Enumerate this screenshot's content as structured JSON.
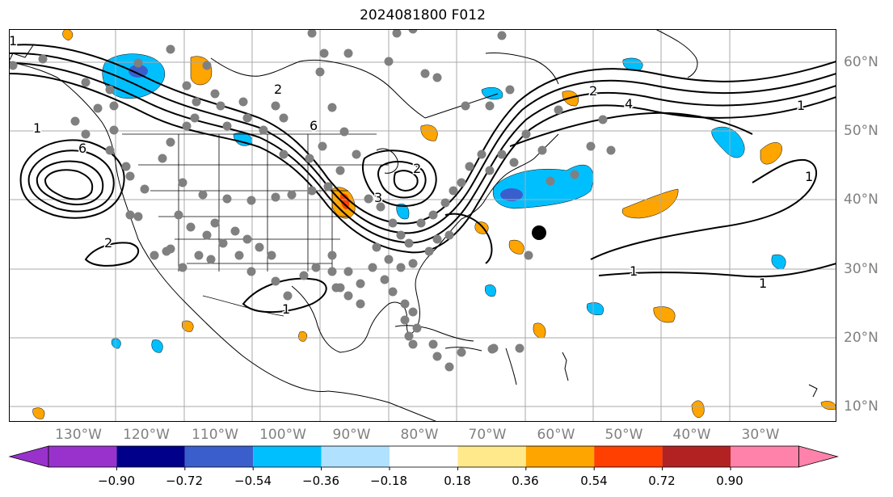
{
  "title": "2024081800 F012",
  "lat_labels": [
    "60°N",
    "50°N",
    "40°N",
    "30°N",
    "20°N",
    "10°N"
  ],
  "lon_labels": [
    "130°W",
    "120°W",
    "110°W",
    "100°W",
    "90°W",
    "80°W",
    "70°W",
    "60°W",
    "50°W",
    "40°W",
    "30°W"
  ],
  "contour_labels": [
    "1",
    "1",
    "1",
    "1",
    "1",
    "1",
    "1",
    "2",
    "2",
    "2",
    "2",
    "3",
    "4",
    "6",
    "6"
  ],
  "colorbar": {
    "ticks": [
      "−0.90",
      "−0.72",
      "−0.54",
      "−0.36",
      "−0.18",
      "0.18",
      "0.36",
      "0.54",
      "0.72",
      "0.90"
    ],
    "colors": [
      "#9932cc",
      "#00008b",
      "#3a5fcd",
      "#00bfff",
      "#b0e2ff",
      "#ffffff",
      "#ffe98a",
      "#ffa500",
      "#ff4000",
      "#b22222",
      "#ff82ab"
    ]
  },
  "colors": {
    "negative": "#00bfff",
    "negative_strong": "#3a5fcd",
    "positive": "#ffa500",
    "positive_strong": "#ff4000",
    "station": "#808080",
    "marker": "#000000"
  }
}
